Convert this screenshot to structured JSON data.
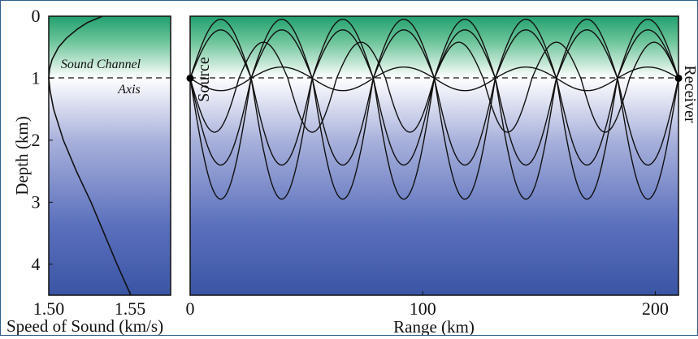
{
  "chart_data": [
    {
      "type": "line",
      "panel": "sound-speed-profile",
      "xlabel": "Speed of Sound (km/s)",
      "ylabel": "Depth (km)",
      "xlim": [
        1.5,
        1.575
      ],
      "ylim": [
        4.5,
        0
      ],
      "x_ticks": [
        "1.50",
        "1.55"
      ],
      "y_ticks": [
        "0",
        "1",
        "2",
        "3",
        "4"
      ],
      "series": [
        {
          "depth": [
            0,
            0.1,
            0.2,
            0.35,
            0.5,
            0.7,
            0.85,
            1.0,
            1.2,
            1.5,
            2.0,
            2.5,
            3.0,
            3.5,
            4.0,
            4.5
          ],
          "speed": [
            1.533,
            1.524,
            1.518,
            1.511,
            1.506,
            1.502,
            1.5005,
            1.5,
            1.5008,
            1.503,
            1.509,
            1.517,
            1.526,
            1.534,
            1.542,
            1.5505
          ]
        }
      ],
      "annotation": {
        "lines": [
          "Sound Channel",
          "Axis"
        ],
        "depth": 1.0
      }
    },
    {
      "type": "line",
      "panel": "ray-paths",
      "xlabel": "Range (km)",
      "xlim": [
        0,
        210
      ],
      "ylim": [
        4.5,
        0
      ],
      "x_ticks": [
        "0",
        "100",
        "200"
      ],
      "y_ticks": [
        "0",
        "1",
        "2",
        "3",
        "4"
      ],
      "source_label": "Source",
      "receiver_label": "Receiver",
      "source": {
        "range": 0,
        "depth": 1.0
      },
      "receiver": {
        "range": 210,
        "depth": 1.0
      },
      "axis_depth": 1.0,
      "rays": [
        {
          "shallow": 0.82,
          "deep": 1.2,
          "cycle_km": 52.5,
          "start": "down"
        },
        {
          "shallow": 0.42,
          "deep": 1.87,
          "cycle_km": 42,
          "start": "down"
        },
        {
          "shallow": 0.22,
          "deep": 2.4,
          "cycle_km": 52.5,
          "start": "up"
        },
        {
          "shallow": 0.05,
          "deep": 2.95,
          "cycle_km": 52.5,
          "start": "up"
        },
        {
          "shallow": 0.05,
          "deep": 2.95,
          "cycle_km": 52.5,
          "start": "down"
        },
        {
          "shallow": 0.22,
          "deep": 2.4,
          "cycle_km": 52.5,
          "start": "down"
        }
      ]
    }
  ]
}
